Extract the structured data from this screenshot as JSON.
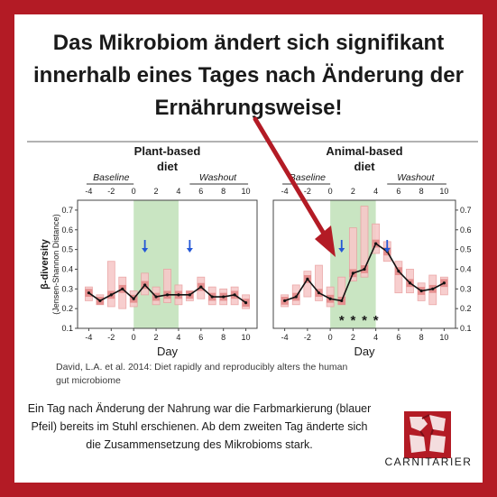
{
  "headline": [
    "Das Mikrobiom ändert sich signifikant",
    "innerhalb eines Tages nach Änderung der",
    "Ernährungsweise!"
  ],
  "colors": {
    "frame": "#b31b25",
    "arrow": "#b31b25",
    "diet_band": "#c9e5c2",
    "box_fill": "#f7c9c9",
    "box_stroke": "#e9a0a0",
    "box_strong": "#e08080",
    "line": "#111111",
    "marker": "#2457d6"
  },
  "citation": "David, L.A. et al. 2014: Diet rapidly and reproducibly alters the human gut microbiome",
  "caption": "Ein Tag nach Änderung der Nahrung war die Farbmarkierung (blauer Pfeil) bereits im Stuhl erschienen. Ab dem zweiten Tag änderte sich die Zusammensetzung des Mikrobioms stark.",
  "brand": "CARNITARIER",
  "chart_data": [
    {
      "type": "line",
      "title": "Plant-based diet",
      "title_lines": [
        "Plant-based",
        "diet"
      ],
      "phases": [
        "Baseline",
        "Washout"
      ],
      "diet_days": [
        0,
        4
      ],
      "marker_days": [
        1,
        5
      ],
      "xlabel": "Day",
      "ylabel": "β-diversity",
      "ylabel2": "(Jensen-Shannon Distance)",
      "xticks": [
        -4,
        -2,
        0,
        2,
        4,
        6,
        8,
        10
      ],
      "xtick_labels": [
        "-4",
        "-2",
        "0",
        "2",
        "4",
        "6",
        "8",
        "10"
      ],
      "yticks": [
        0.1,
        0.2,
        0.3,
        0.4,
        0.5,
        0.6,
        0.7
      ],
      "ytick_labels": [
        "0.1",
        "0.2",
        "0.3",
        "0.4",
        "0.5",
        "0.6",
        "0.7"
      ],
      "xlim": [
        -5,
        11
      ],
      "ylim": [
        0.1,
        0.75
      ],
      "x": [
        -4,
        -3,
        -2,
        -1,
        0,
        1,
        2,
        3,
        4,
        5,
        6,
        7,
        8,
        9,
        10
      ],
      "values": [
        0.28,
        0.24,
        0.27,
        0.3,
        0.25,
        0.32,
        0.26,
        0.27,
        0.27,
        0.27,
        0.31,
        0.26,
        0.26,
        0.27,
        0.23
      ],
      "box_low": [
        0.24,
        0.22,
        0.21,
        0.2,
        0.21,
        0.27,
        0.22,
        0.23,
        0.22,
        0.24,
        0.25,
        0.22,
        0.22,
        0.22,
        0.2
      ],
      "box_high": [
        0.31,
        0.27,
        0.44,
        0.36,
        0.29,
        0.38,
        0.31,
        0.4,
        0.32,
        0.29,
        0.36,
        0.31,
        0.3,
        0.31,
        0.27
      ],
      "significant_days": []
    },
    {
      "type": "line",
      "title": "Animal-based diet",
      "title_lines": [
        "Animal-based",
        "diet"
      ],
      "phases": [
        "Baseline",
        "Washout"
      ],
      "diet_days": [
        0,
        4
      ],
      "marker_days": [
        1,
        5
      ],
      "xlabel": "Day",
      "ylabel": "",
      "xticks": [
        -4,
        -2,
        0,
        2,
        4,
        6,
        8,
        10
      ],
      "xtick_labels": [
        "-4",
        "-2",
        "0",
        "2",
        "4",
        "6",
        "8",
        "10"
      ],
      "yticks": [
        0.1,
        0.2,
        0.3,
        0.4,
        0.5,
        0.6,
        0.7
      ],
      "ytick_labels": [
        "0.1",
        "0.2",
        "0.3",
        "0.4",
        "0.5",
        "0.6",
        "0.7"
      ],
      "xlim": [
        -5,
        11
      ],
      "ylim": [
        0.1,
        0.75
      ],
      "x": [
        -4,
        -3,
        -2,
        -1,
        0,
        1,
        2,
        3,
        4,
        5,
        6,
        7,
        8,
        9,
        10
      ],
      "values": [
        0.24,
        0.26,
        0.35,
        0.28,
        0.25,
        0.24,
        0.38,
        0.4,
        0.53,
        0.49,
        0.39,
        0.33,
        0.29,
        0.3,
        0.33
      ],
      "box_low": [
        0.21,
        0.22,
        0.26,
        0.24,
        0.21,
        0.22,
        0.34,
        0.36,
        0.48,
        0.44,
        0.28,
        0.28,
        0.24,
        0.22,
        0.27
      ],
      "box_high": [
        0.27,
        0.32,
        0.39,
        0.42,
        0.31,
        0.36,
        0.61,
        0.72,
        0.63,
        0.54,
        0.44,
        0.4,
        0.33,
        0.37,
        0.36
      ],
      "significant_days": [
        1,
        2,
        3,
        4
      ],
      "significance_mark": "*"
    }
  ]
}
